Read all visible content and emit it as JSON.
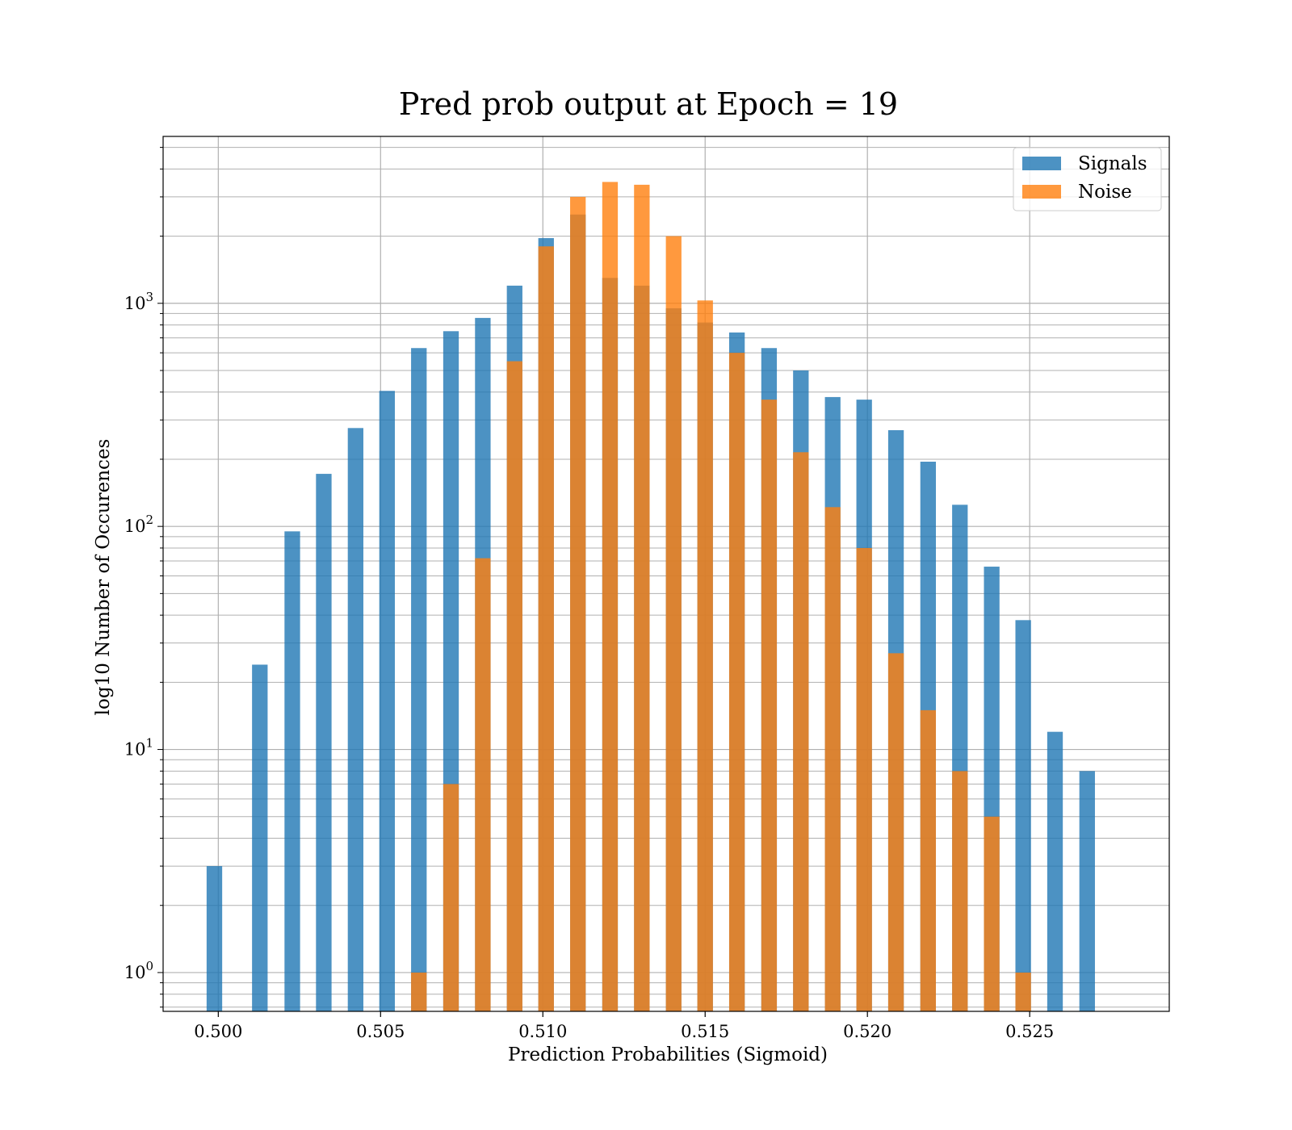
{
  "chart_data": {
    "type": "bar",
    "title": "Pred prob output at Epoch = 19",
    "xlabel": "Prediction Probabilities (Sigmoid)",
    "ylabel": "log10 Number of Occurences",
    "xlim": [
      0.4983,
      0.5293
    ],
    "ylim": [
      0.67,
      5600
    ],
    "yscale": "log",
    "grid": true,
    "bar_width": 0.00048,
    "x_ticks": [
      "0.500",
      "0.505",
      "0.510",
      "0.515",
      "0.520",
      "0.525"
    ],
    "x_tick_values": [
      0.5,
      0.505,
      0.51,
      0.515,
      0.52,
      0.525
    ],
    "y_ticks": [
      {
        "base": "10",
        "exp": "0",
        "value": 1
      },
      {
        "base": "10",
        "exp": "1",
        "value": 10
      },
      {
        "base": "10",
        "exp": "2",
        "value": 100
      },
      {
        "base": "10",
        "exp": "3",
        "value": 1000
      }
    ],
    "legend": {
      "position": "upper-right",
      "entries": [
        "Signals",
        "Noise"
      ]
    },
    "colors": {
      "signals": "#1f77b4",
      "noise": "#ff7f0e"
    },
    "series": [
      {
        "name": "Signals",
        "x": [
          0.49988,
          0.50128,
          0.50228,
          0.50325,
          0.50423,
          0.5052,
          0.50618,
          0.50717,
          0.50815,
          0.50913,
          0.5101,
          0.51108,
          0.51207,
          0.51305,
          0.51403,
          0.515,
          0.51598,
          0.51697,
          0.51795,
          0.51893,
          0.5199,
          0.52088,
          0.52187,
          0.52285,
          0.52383,
          0.5248,
          0.52578,
          0.52677
        ],
        "values": [
          3,
          24,
          95,
          172,
          276,
          405,
          630,
          750,
          860,
          1200,
          1960,
          2500,
          1300,
          1200,
          950,
          820,
          740,
          630,
          500,
          380,
          370,
          270,
          195,
          125,
          66,
          38,
          12,
          8
        ]
      },
      {
        "name": "Noise",
        "x": [
          0.50618,
          0.50717,
          0.50815,
          0.50913,
          0.5101,
          0.51108,
          0.51207,
          0.51305,
          0.51403,
          0.515,
          0.51598,
          0.51697,
          0.51795,
          0.51893,
          0.5199,
          0.52088,
          0.52187,
          0.52285,
          0.52383,
          0.5248
        ],
        "values": [
          1,
          7,
          72,
          550,
          1800,
          3000,
          3500,
          3400,
          2000,
          1030,
          600,
          370,
          215,
          122,
          80,
          27,
          15,
          8,
          5,
          1
        ]
      }
    ]
  }
}
